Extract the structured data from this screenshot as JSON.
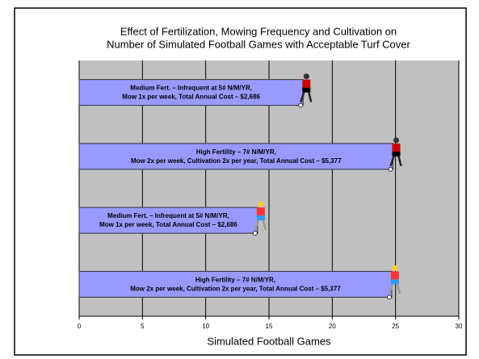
{
  "chart_data": {
    "type": "bar",
    "title": [
      "Effect of Fertilization, Mowing Frequency  and Cultivation on",
      "Number of Simulated Football Games with Acceptable Turf Cover"
    ],
    "x_label": "Simulated Football Games",
    "categories": [
      [
        "Medium Fert. – Infrequent at 5# N/M/YR,",
        "Mow 1x per week, Total Annual Cost – $2,686"
      ],
      [
        "High Fertility – 7# N/M/YR,",
        "Mow 2x per week, Cultivation 2x per year, Total Annual Cost – $5,377"
      ],
      [
        "Medium Fert. – Infrequent at 5# N/M/YR,",
        "Mow 1x per week, Total Annual Cost – $2,686"
      ],
      [
        "High Fertility – 7# N/M/YR,",
        "Mow 2x per week, Cultivation 2x per year, Total Annual Cost – $5,377"
      ]
    ],
    "values": [
      17.7,
      24.8,
      14.1,
      24.7
    ],
    "color": "#9999ff",
    "xlim": [
      0,
      30
    ],
    "xticks": [
      0,
      5,
      10,
      15,
      20,
      25,
      30
    ],
    "grid": true
  }
}
